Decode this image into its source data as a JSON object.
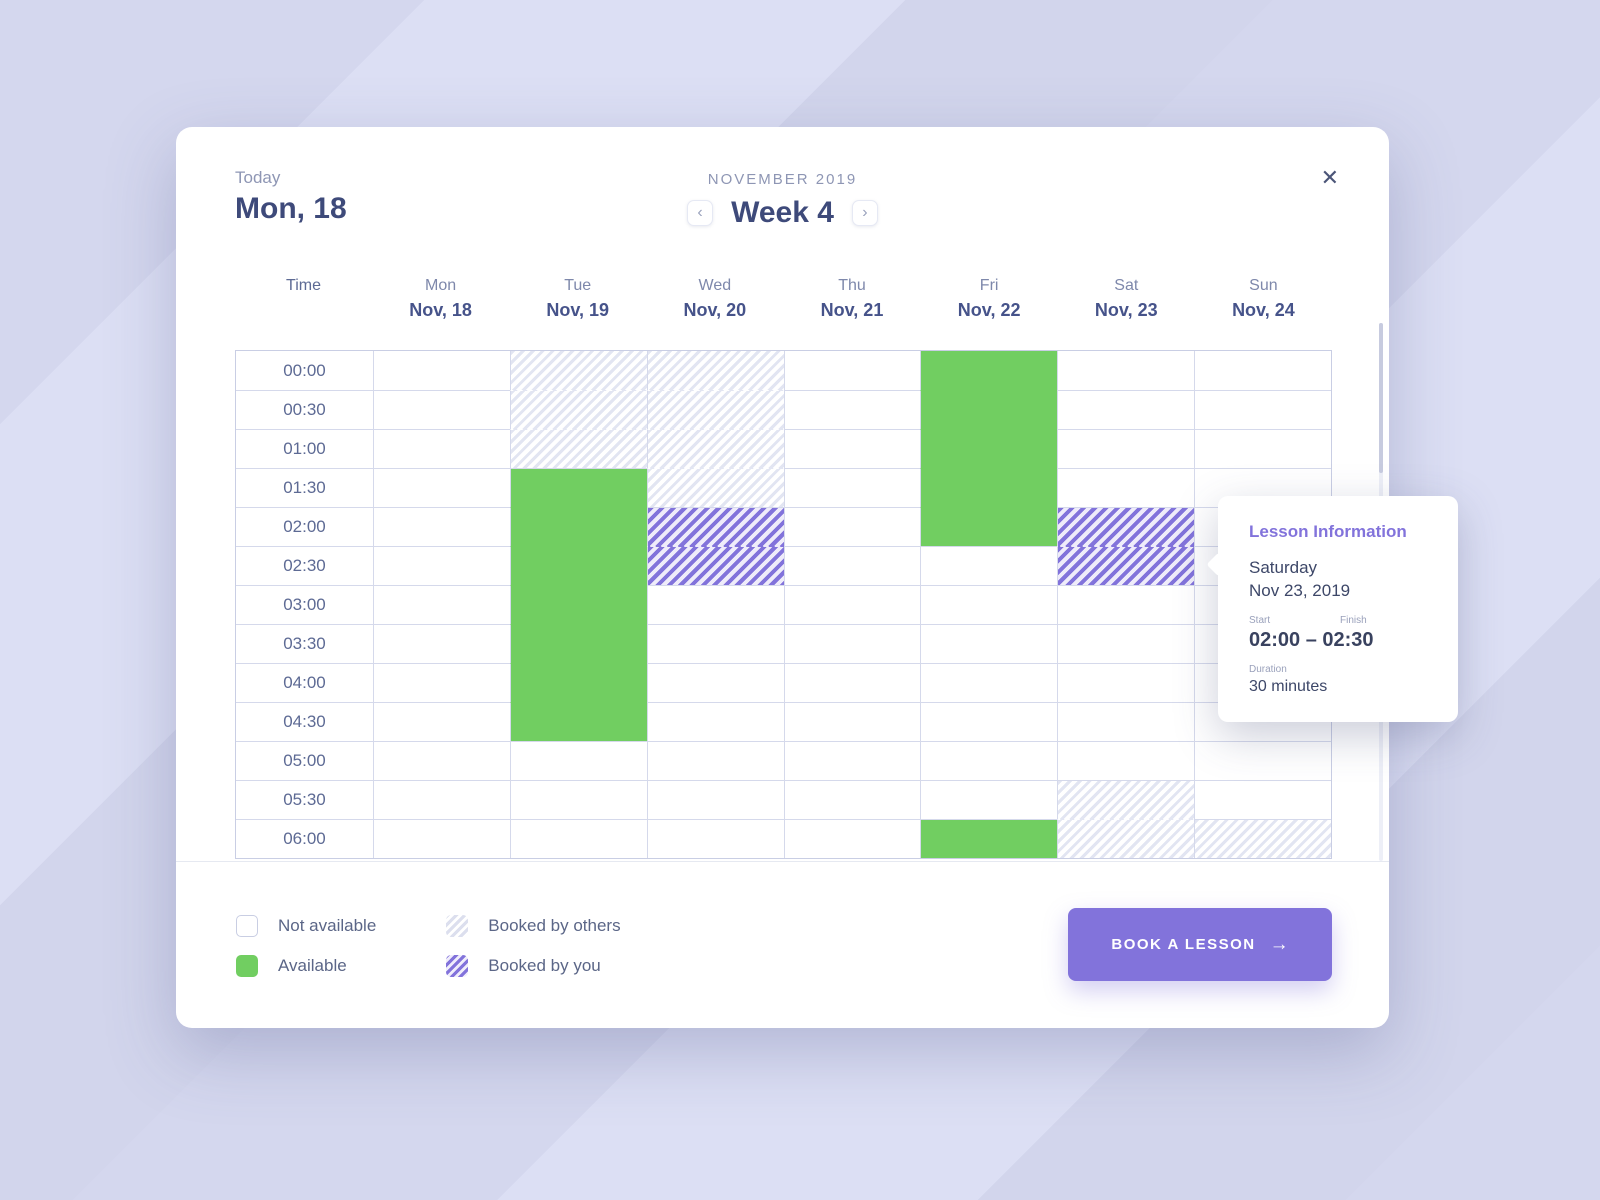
{
  "colors": {
    "accent_purple": "#8273DB",
    "available_green": "#71CE61",
    "dark_text": "#3E4A7A",
    "muted_text": "#8E96B4"
  },
  "header": {
    "today_label": "Today",
    "today_date": "Mon, 18",
    "month_label": "NOVEMBER 2019",
    "week_label": "Week 4",
    "prev_icon": "‹",
    "next_icon": "›",
    "close_icon": "✕"
  },
  "calendar": {
    "time_header": "Time",
    "times": [
      "00:00",
      "00:30",
      "01:00",
      "01:30",
      "02:00",
      "02:30",
      "03:00",
      "03:30",
      "04:00",
      "04:30",
      "05:00",
      "05:30",
      "06:00"
    ],
    "days": [
      {
        "name": "Mon",
        "date": "Nov, 18"
      },
      {
        "name": "Tue",
        "date": "Nov, 19"
      },
      {
        "name": "Wed",
        "date": "Nov, 20"
      },
      {
        "name": "Thu",
        "date": "Nov, 21"
      },
      {
        "name": "Fri",
        "date": "Nov, 22"
      },
      {
        "name": "Sat",
        "date": "Nov, 23"
      },
      {
        "name": "Sun",
        "date": "Nov, 24"
      }
    ],
    "states": {
      "n": "not-available",
      "a": "available",
      "o": "booked-by-others",
      "y": "booked-by-you"
    },
    "schedule": [
      [
        "n",
        "n",
        "n",
        "n",
        "n",
        "n",
        "n",
        "n",
        "n",
        "n",
        "n",
        "n",
        "n"
      ],
      [
        "o",
        "o",
        "o",
        "a",
        "a",
        "a",
        "a",
        "a",
        "a",
        "a",
        "n",
        "n",
        "n"
      ],
      [
        "o",
        "o",
        "o",
        "o",
        "y",
        "y",
        "n",
        "n",
        "n",
        "n",
        "n",
        "n",
        "n"
      ],
      [
        "n",
        "n",
        "n",
        "n",
        "n",
        "n",
        "n",
        "n",
        "n",
        "n",
        "n",
        "n",
        "n"
      ],
      [
        "a",
        "a",
        "a",
        "a",
        "a",
        "n",
        "n",
        "n",
        "n",
        "n",
        "n",
        "n",
        "a"
      ],
      [
        "n",
        "n",
        "n",
        "n",
        "y",
        "y",
        "n",
        "n",
        "n",
        "n",
        "n",
        "o",
        "o"
      ],
      [
        "n",
        "n",
        "n",
        "n",
        "n",
        "n",
        "n",
        "n",
        "n",
        "n",
        "n",
        "n",
        "o"
      ]
    ]
  },
  "tooltip": {
    "title": "Lesson Information",
    "day_name": "Saturday",
    "date": "Nov 23, 2019",
    "start_label": "Start",
    "finish_label": "Finish",
    "time_range": "02:00 – 02:30",
    "duration_label": "Duration",
    "duration_value": "30 minutes"
  },
  "legend": {
    "items": [
      {
        "state": "n",
        "label": "Not available"
      },
      {
        "state": "a",
        "label": "Available"
      },
      {
        "state": "o",
        "label": "Booked by others"
      },
      {
        "state": "y",
        "label": "Booked by you"
      }
    ]
  },
  "footer": {
    "book_button_label": "BOOK A LESSON",
    "book_button_icon": "→"
  }
}
